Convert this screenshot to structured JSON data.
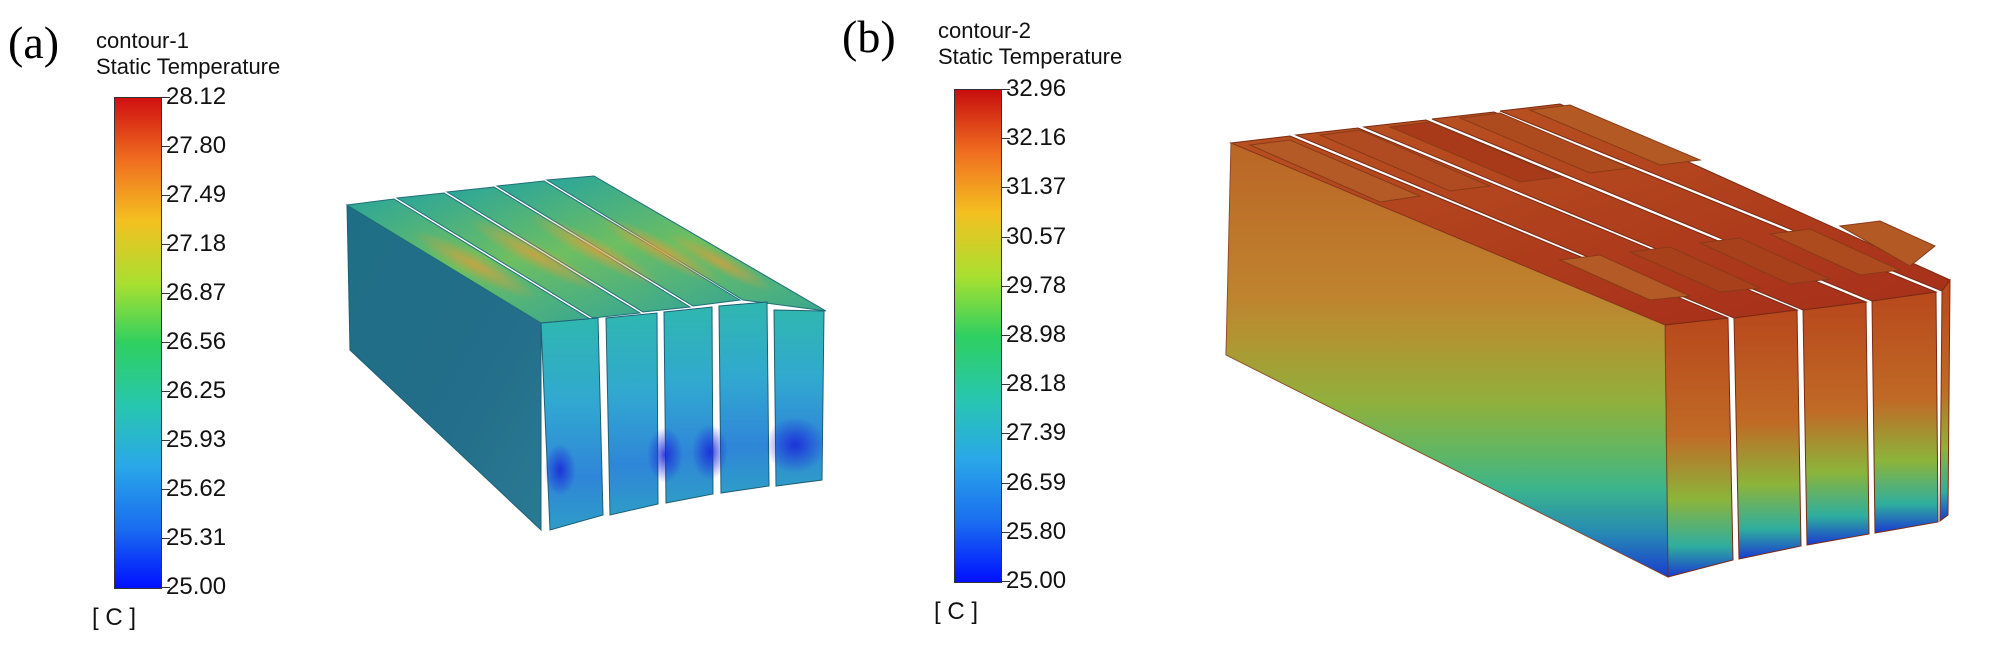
{
  "panels": [
    {
      "letter": "(a)",
      "legend": {
        "name": "contour-1",
        "quantity": "Static Temperature",
        "unit": "[ C ]",
        "ticks": [
          "28.12",
          "27.80",
          "27.49",
          "27.18",
          "26.87",
          "26.56",
          "26.25",
          "25.93",
          "25.62",
          "25.31",
          "25.00"
        ]
      },
      "block_count": 5
    },
    {
      "letter": "(b)",
      "legend": {
        "name": "contour-2",
        "quantity": "Static Temperature",
        "unit": "[ C ]",
        "ticks": [
          "32.96",
          "32.16",
          "31.37",
          "30.57",
          "29.78",
          "28.98",
          "28.18",
          "27.39",
          "26.59",
          "25.80",
          "25.00"
        ]
      },
      "block_count": 5
    }
  ],
  "colors": {
    "colormap": [
      "#0010ff",
      "#1a6cf0",
      "#2aa8e8",
      "#27c6b0",
      "#2fd060",
      "#a8e030",
      "#f4c020",
      "#f07020",
      "#d01010"
    ]
  }
}
